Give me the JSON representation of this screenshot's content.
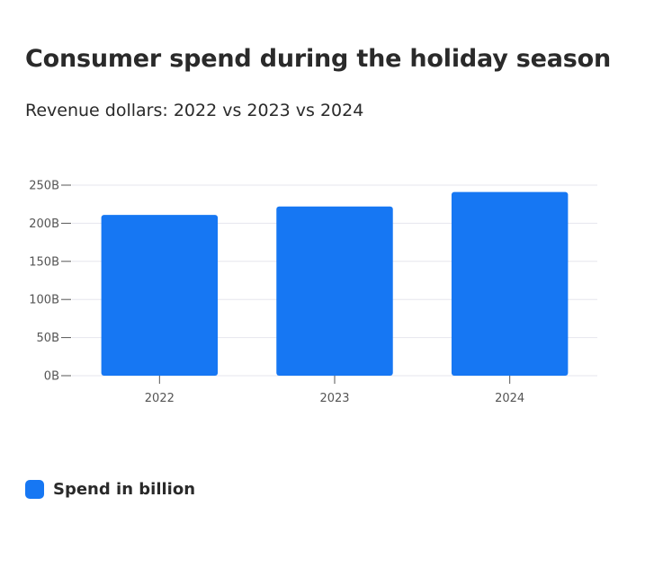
{
  "colors": {
    "bar": "#1677f3",
    "grid": "#e6e6ee",
    "tick_text": "#555555"
  },
  "chart_data": {
    "type": "bar",
    "title": "Consumer spend during the holiday season",
    "subtitle": "Revenue dollars: 2022 vs 2023 vs 2024",
    "categories": [
      "2022",
      "2023",
      "2024"
    ],
    "series": [
      {
        "name": "Spend in billion",
        "values": [
          211,
          222,
          241
        ]
      }
    ],
    "yticks": [
      0,
      50,
      100,
      150,
      200,
      250
    ],
    "ytick_labels": [
      "0B",
      "50B",
      "100B",
      "150B",
      "200B",
      "250B"
    ],
    "ylim": [
      0,
      250
    ],
    "grid": true,
    "legend": "bottom-left"
  }
}
